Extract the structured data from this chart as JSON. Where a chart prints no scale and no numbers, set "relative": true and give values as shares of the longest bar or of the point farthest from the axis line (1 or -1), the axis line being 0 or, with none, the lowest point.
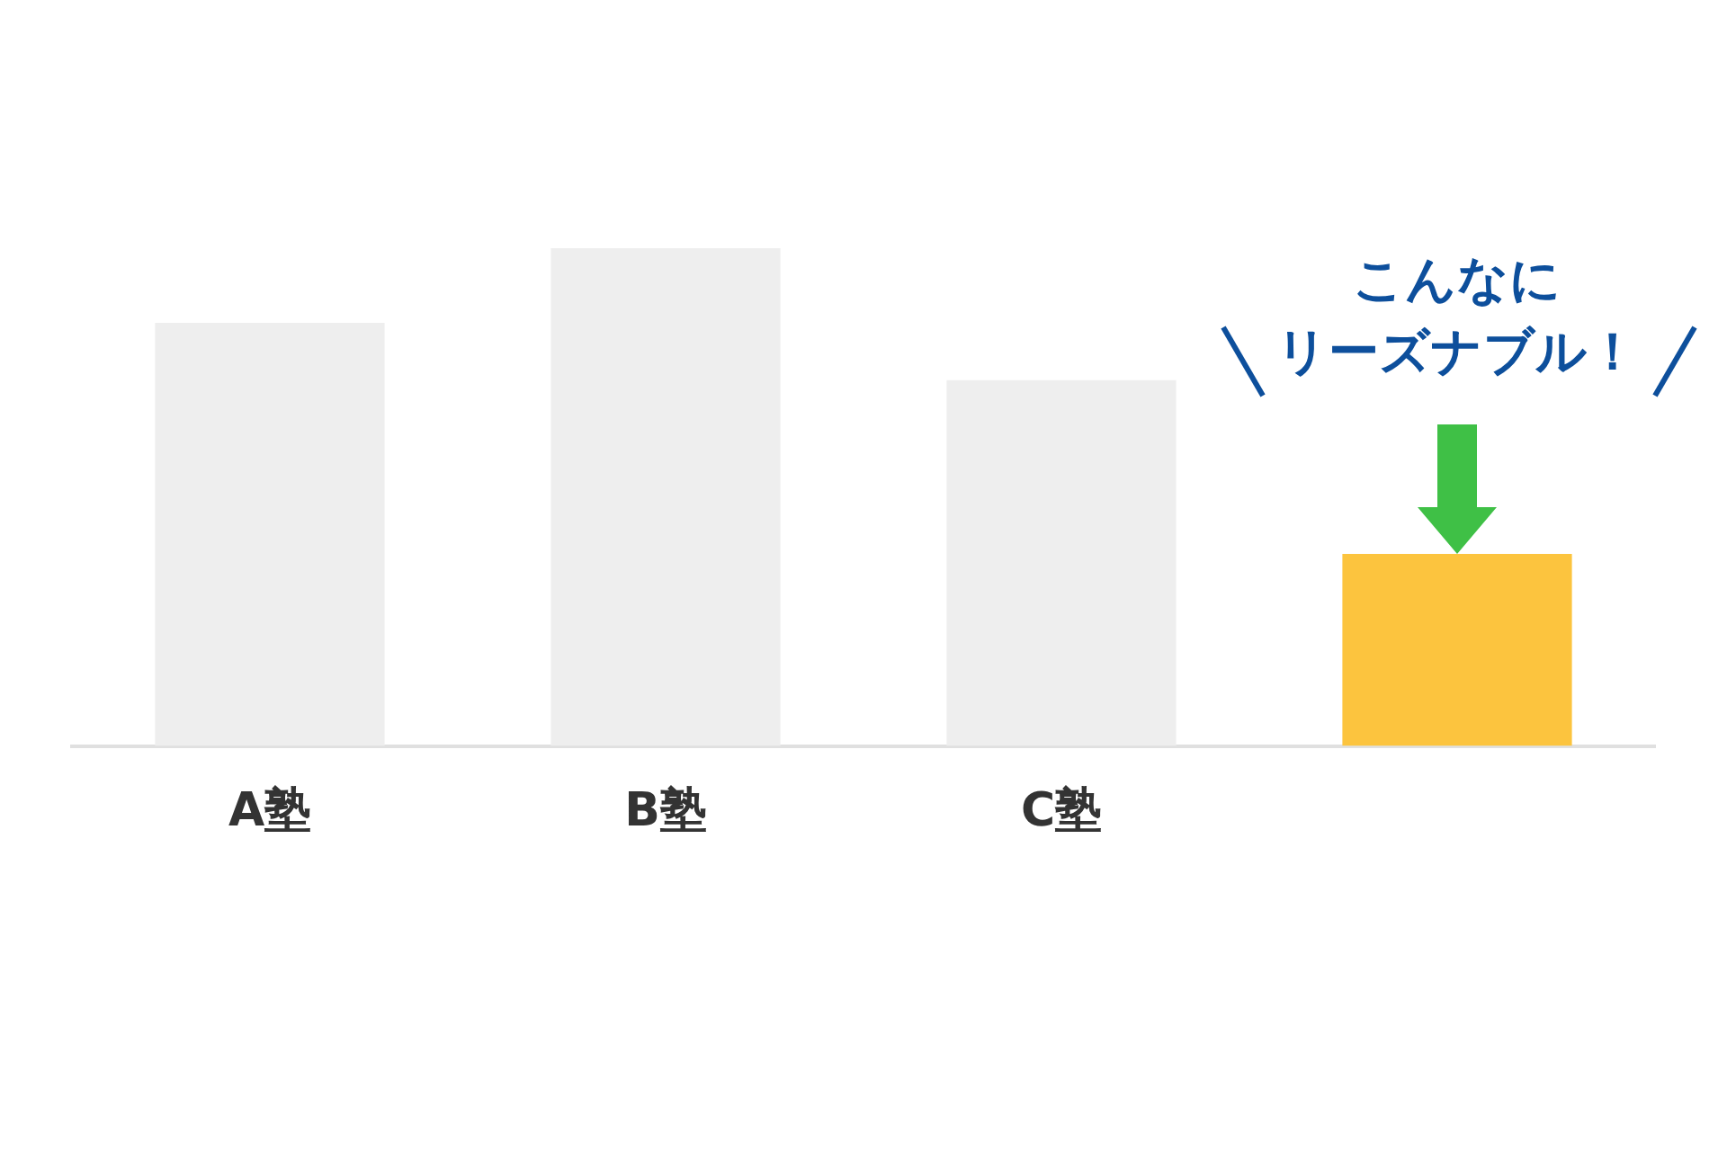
{
  "chart_data": {
    "type": "bar",
    "relative": true,
    "categories": [
      "A塾",
      "B塾",
      "C塾",
      null
    ],
    "values": [
      0.85,
      1,
      0.735,
      0.386
    ],
    "colors": [
      "#eeeeee",
      "#eeeeee",
      "#eeeeee",
      "#fcc43e"
    ],
    "annotations": [
      "こんなに",
      "リーズナブル！"
    ]
  }
}
